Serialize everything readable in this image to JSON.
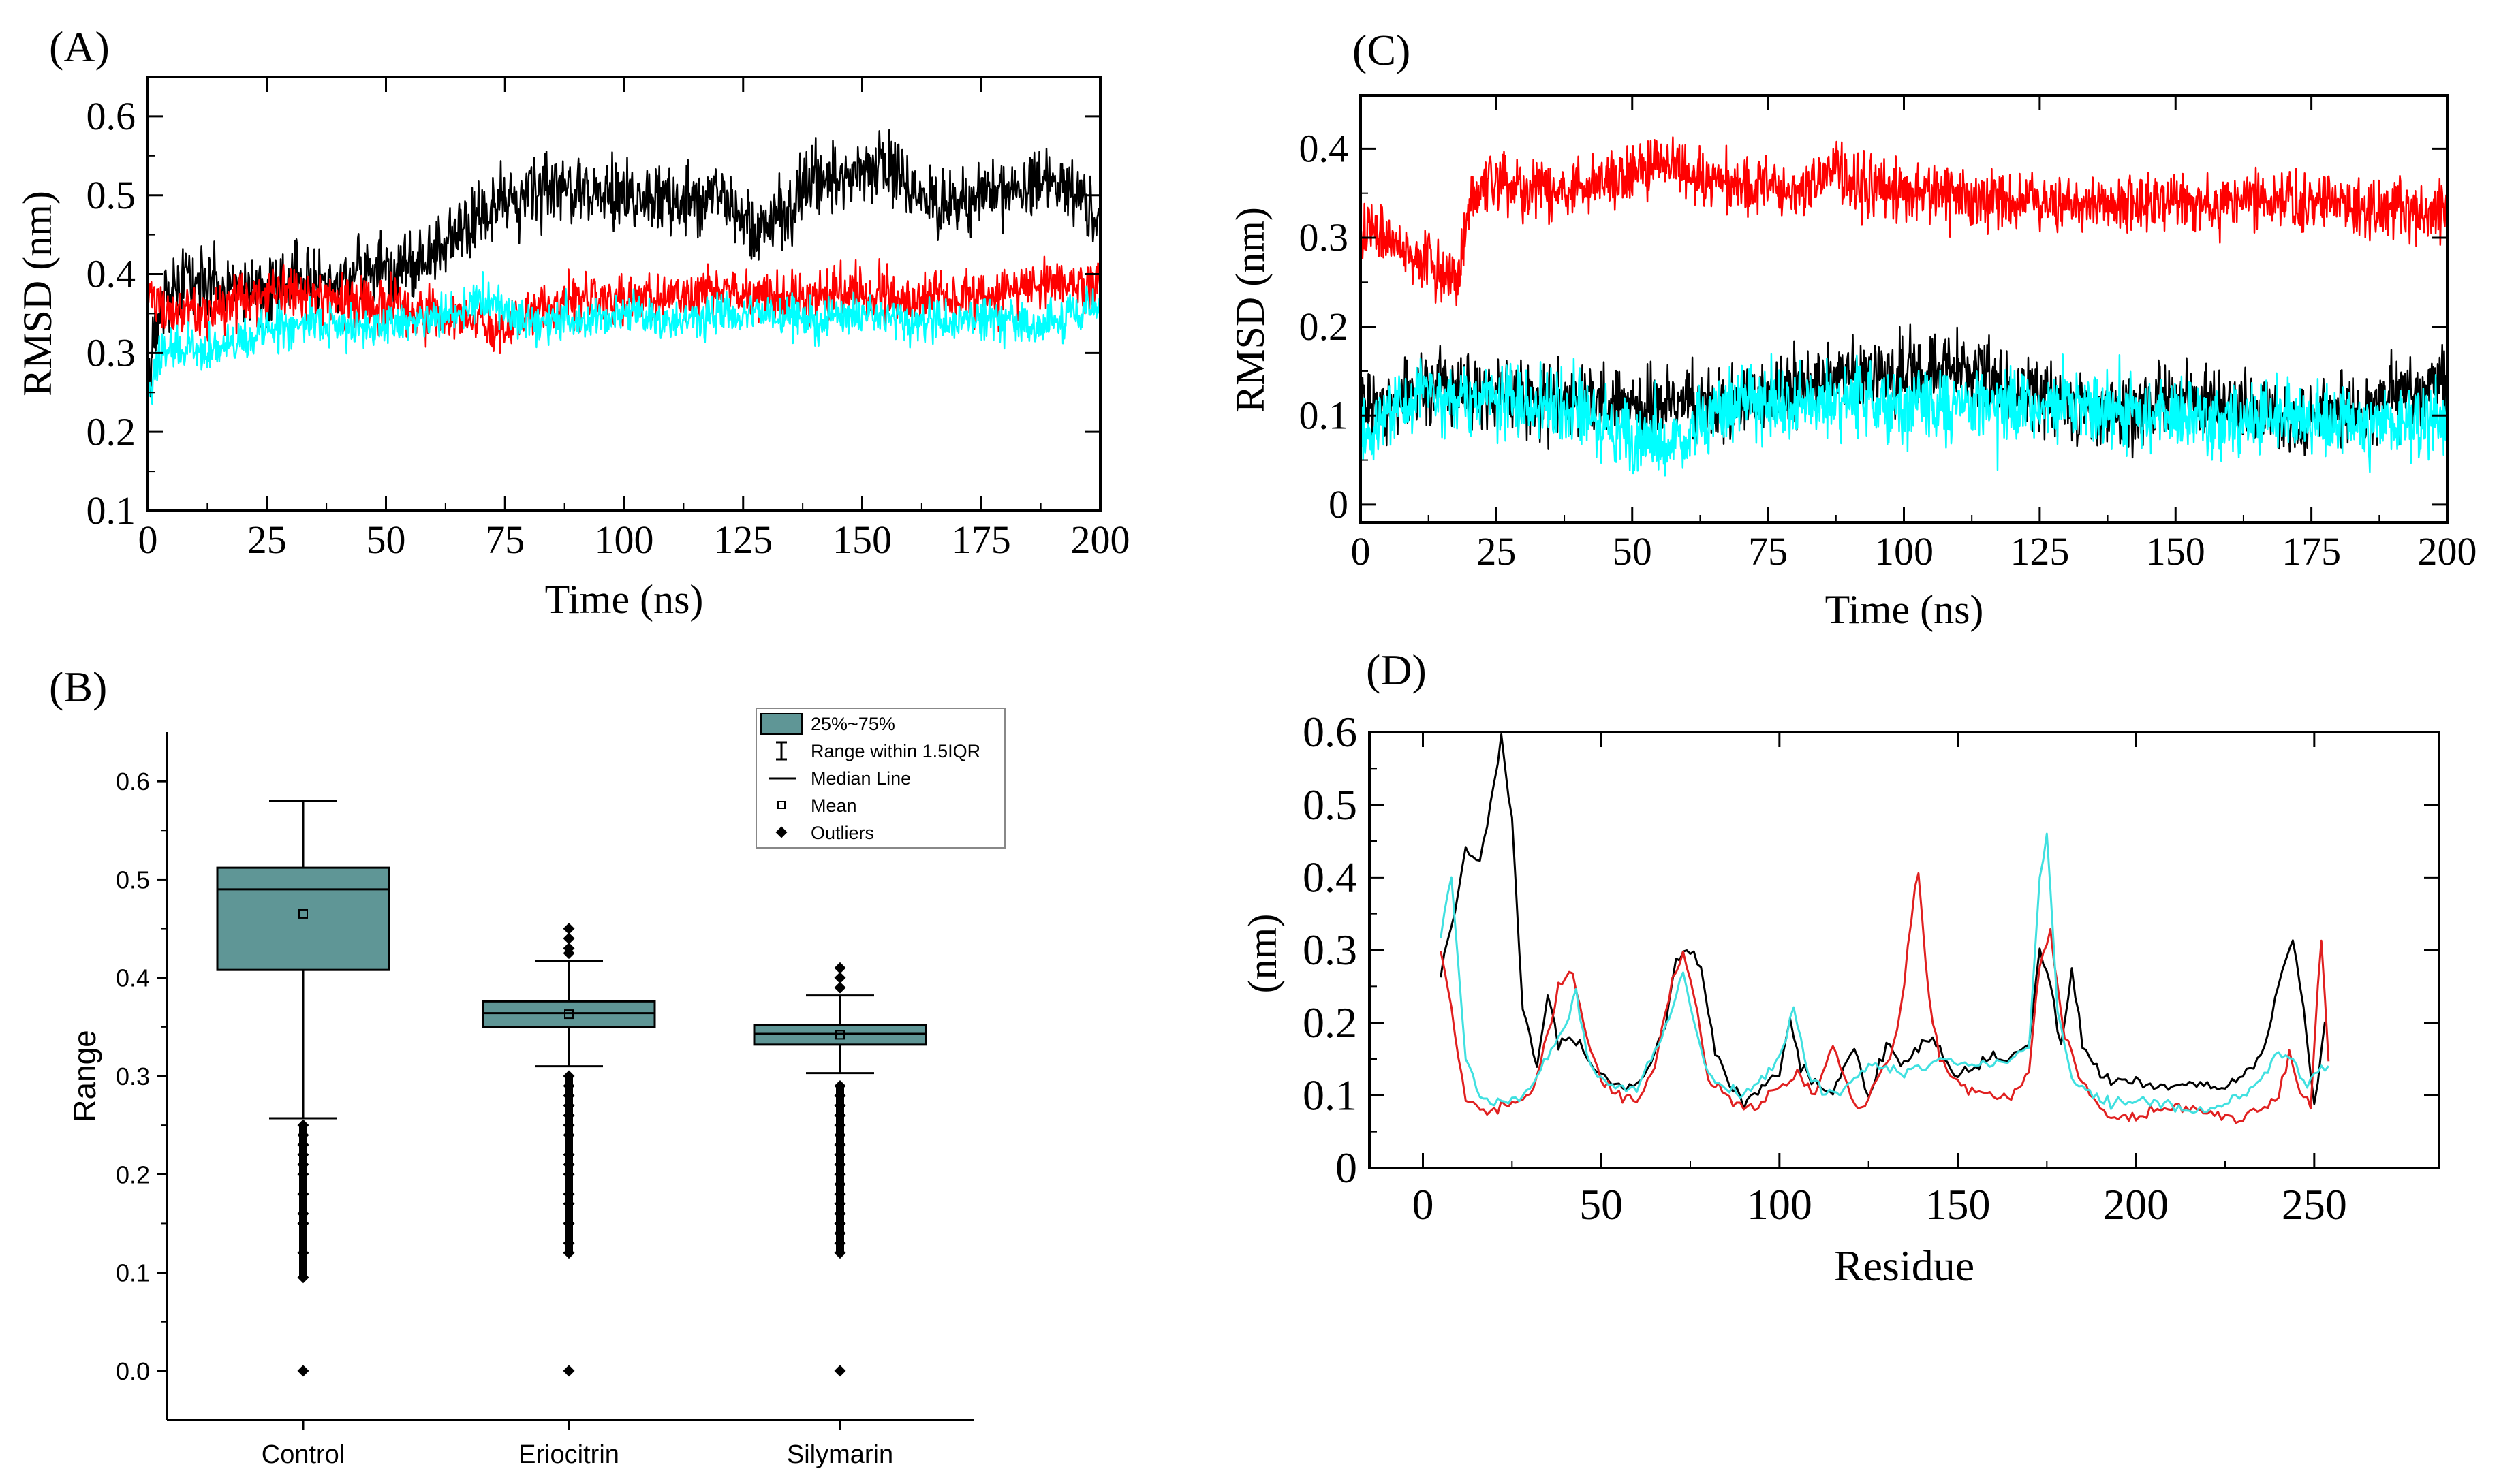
{
  "figure": {
    "panel_labels": {
      "A": "(A)",
      "B": "(B)",
      "C": "(C)",
      "D": "(D)"
    }
  },
  "chart_data": [
    {
      "id": "A",
      "type": "line",
      "title": "",
      "xlabel": "Time (ns)",
      "ylabel": "RMSD (nm)",
      "xlim": [
        0,
        200
      ],
      "ylim": [
        0.1,
        0.65
      ],
      "xticks": [
        "0",
        "25",
        "50",
        "75",
        "100",
        "125",
        "150",
        "175",
        "200"
      ],
      "yticks": [
        "0.1",
        "0.2",
        "0.3",
        "0.4",
        "0.5",
        "0.6"
      ],
      "series": [
        {
          "name": "black",
          "color": "#000000",
          "noise": 0.022,
          "x": [
            0,
            3,
            8,
            15,
            25,
            35,
            45,
            55,
            62,
            68,
            72,
            78,
            85,
            95,
            105,
            115,
            120,
            125,
            130,
            140,
            150,
            155,
            160,
            170,
            180,
            190,
            195,
            200
          ],
          "y": [
            0.26,
            0.36,
            0.4,
            0.38,
            0.38,
            0.39,
            0.4,
            0.41,
            0.43,
            0.46,
            0.48,
            0.5,
            0.51,
            0.5,
            0.5,
            0.49,
            0.51,
            0.47,
            0.46,
            0.52,
            0.53,
            0.54,
            0.5,
            0.49,
            0.51,
            0.52,
            0.5,
            0.48
          ]
        },
        {
          "name": "red",
          "color": "#ff0000",
          "noise": 0.016,
          "x": [
            0,
            3,
            10,
            20,
            30,
            40,
            50,
            60,
            70,
            75,
            80,
            90,
            100,
            110,
            120,
            130,
            140,
            150,
            160,
            170,
            180,
            190,
            200
          ],
          "y": [
            0.38,
            0.36,
            0.35,
            0.37,
            0.38,
            0.37,
            0.36,
            0.35,
            0.34,
            0.33,
            0.35,
            0.37,
            0.37,
            0.37,
            0.38,
            0.37,
            0.37,
            0.38,
            0.37,
            0.37,
            0.38,
            0.39,
            0.39
          ]
        },
        {
          "name": "cyan",
          "color": "#00ffff",
          "noise": 0.013,
          "x": [
            0,
            3,
            8,
            15,
            25,
            35,
            45,
            55,
            65,
            70,
            80,
            90,
            100,
            110,
            120,
            130,
            140,
            150,
            160,
            170,
            180,
            190,
            200
          ],
          "y": [
            0.25,
            0.3,
            0.31,
            0.3,
            0.33,
            0.34,
            0.33,
            0.34,
            0.35,
            0.37,
            0.34,
            0.34,
            0.35,
            0.34,
            0.35,
            0.35,
            0.34,
            0.35,
            0.34,
            0.34,
            0.34,
            0.34,
            0.36
          ]
        }
      ]
    },
    {
      "id": "B",
      "type": "box",
      "title": "",
      "xlabel": "",
      "ylabel": "Range",
      "ylim": [
        -0.05,
        0.65
      ],
      "yticks": [
        "0.0",
        "0.1",
        "0.2",
        "0.3",
        "0.4",
        "0.5",
        "0.6"
      ],
      "categories": [
        "Control",
        "Eriocitrin",
        "Silymarin"
      ],
      "fill": "#5f9696",
      "boxes": [
        {
          "q1": 0.408,
          "median": 0.49,
          "q3": 0.512,
          "mean": 0.465,
          "whisker_low": 0.257,
          "whisker_high": 0.58,
          "outliers_low": [
            0.0,
            0.095,
            0.12,
            0.15,
            0.16,
            0.18,
            0.2,
            0.21,
            0.22,
            0.23,
            0.24,
            0.25
          ],
          "outliers_high": []
        },
        {
          "q1": 0.35,
          "median": 0.364,
          "q3": 0.376,
          "mean": 0.363,
          "whisker_low": 0.31,
          "whisker_high": 0.417,
          "outliers_low": [
            0.0,
            0.12,
            0.13,
            0.15,
            0.17,
            0.18,
            0.2,
            0.21,
            0.22,
            0.24,
            0.25,
            0.26,
            0.27,
            0.28,
            0.29,
            0.3
          ],
          "outliers_high": [
            0.425,
            0.43,
            0.44,
            0.45
          ]
        },
        {
          "q1": 0.332,
          "median": 0.343,
          "q3": 0.352,
          "mean": 0.342,
          "whisker_low": 0.303,
          "whisker_high": 0.382,
          "outliers_low": [
            0.0,
            0.12,
            0.13,
            0.14,
            0.15,
            0.16,
            0.17,
            0.18,
            0.19,
            0.2,
            0.21,
            0.22,
            0.23,
            0.24,
            0.25,
            0.26,
            0.27,
            0.28,
            0.29
          ],
          "outliers_high": [
            0.39,
            0.4,
            0.41
          ]
        }
      ],
      "legend": {
        "box": "25%~75%",
        "range": "Range within 1.5IQR",
        "median": "Median Line",
        "mean": "Mean",
        "outliers": "Outliers"
      }
    },
    {
      "id": "C",
      "type": "line",
      "title": "",
      "xlabel": "Time (ns)",
      "ylabel": "RMSD (nm)",
      "xlim": [
        0,
        200
      ],
      "ylim": [
        -0.02,
        0.46
      ],
      "xticks": [
        "0",
        "25",
        "50",
        "75",
        "100",
        "125",
        "150",
        "175",
        "200"
      ],
      "yticks": [
        "0",
        "0.1",
        "0.2",
        "0.3",
        "0.4"
      ],
      "series": [
        {
          "name": "red",
          "color": "#ff0000",
          "noise": 0.016,
          "x": [
            0,
            5,
            10,
            15,
            18,
            20,
            25,
            30,
            40,
            50,
            55,
            58,
            60,
            70,
            80,
            87,
            88,
            90,
            100,
            110,
            120,
            130,
            140,
            150,
            160,
            170,
            180,
            190,
            200
          ],
          "y": [
            0.31,
            0.3,
            0.28,
            0.26,
            0.25,
            0.34,
            0.37,
            0.35,
            0.36,
            0.37,
            0.38,
            0.39,
            0.37,
            0.36,
            0.35,
            0.37,
            0.38,
            0.36,
            0.35,
            0.35,
            0.34,
            0.34,
            0.34,
            0.34,
            0.34,
            0.34,
            0.34,
            0.33,
            0.33
          ]
        },
        {
          "name": "black",
          "color": "#000000",
          "noise": 0.02,
          "x": [
            0,
            5,
            10,
            20,
            30,
            40,
            50,
            60,
            70,
            80,
            90,
            100,
            110,
            120,
            130,
            140,
            150,
            160,
            170,
            180,
            190,
            200
          ],
          "y": [
            0.11,
            0.1,
            0.13,
            0.13,
            0.12,
            0.12,
            0.11,
            0.12,
            0.11,
            0.13,
            0.14,
            0.15,
            0.15,
            0.13,
            0.11,
            0.11,
            0.12,
            0.11,
            0.1,
            0.1,
            0.12,
            0.14
          ]
        },
        {
          "name": "cyan",
          "color": "#00ffff",
          "noise": 0.02,
          "x": [
            0,
            5,
            10,
            20,
            30,
            40,
            48,
            52,
            60,
            65,
            70,
            80,
            90,
            100,
            110,
            120,
            130,
            140,
            150,
            160,
            170,
            180,
            190,
            200
          ],
          "y": [
            0.08,
            0.1,
            0.12,
            0.12,
            0.12,
            0.11,
            0.07,
            0.07,
            0.08,
            0.1,
            0.12,
            0.11,
            0.12,
            0.11,
            0.11,
            0.11,
            0.11,
            0.1,
            0.1,
            0.09,
            0.1,
            0.09,
            0.09,
            0.1
          ]
        }
      ]
    },
    {
      "id": "D",
      "type": "line",
      "title": "",
      "xlabel": "Residue",
      "ylabel": "(nm)",
      "xlim": [
        -15,
        285
      ],
      "ylim": [
        0,
        0.6
      ],
      "xticks": [
        "0",
        "50",
        "100",
        "150",
        "200",
        "250"
      ],
      "yticks": [
        "0",
        "0.1",
        "0.2",
        "0.3",
        "0.4",
        "0.5",
        "0.6"
      ],
      "series": [
        {
          "name": "black",
          "color": "#000000",
          "noise": 0.004,
          "x": [
            5,
            8,
            12,
            16,
            20,
            22,
            25,
            28,
            32,
            35,
            38,
            41,
            44,
            47,
            52,
            58,
            63,
            68,
            71,
            74,
            78,
            82,
            86,
            90,
            95,
            100,
            103,
            106,
            110,
            115,
            118,
            121,
            125,
            128,
            131,
            134,
            137,
            140,
            143,
            146,
            150,
            155,
            160,
            165,
            170,
            173,
            176,
            179,
            182,
            185,
            190,
            195,
            200,
            205,
            210,
            215,
            220,
            225,
            230,
            235,
            238,
            241,
            244,
            247,
            250,
            253
          ],
          "y": [
            0.27,
            0.33,
            0.44,
            0.42,
            0.53,
            0.59,
            0.48,
            0.22,
            0.14,
            0.24,
            0.17,
            0.18,
            0.17,
            0.14,
            0.12,
            0.11,
            0.13,
            0.2,
            0.28,
            0.3,
            0.28,
            0.16,
            0.12,
            0.09,
            0.11,
            0.13,
            0.2,
            0.14,
            0.12,
            0.1,
            0.14,
            0.17,
            0.09,
            0.15,
            0.17,
            0.14,
            0.15,
            0.17,
            0.18,
            0.15,
            0.13,
            0.14,
            0.15,
            0.15,
            0.17,
            0.3,
            0.25,
            0.17,
            0.27,
            0.17,
            0.13,
            0.12,
            0.12,
            0.11,
            0.11,
            0.12,
            0.11,
            0.11,
            0.13,
            0.15,
            0.21,
            0.27,
            0.32,
            0.22,
            0.08,
            0.2
          ]
        },
        {
          "name": "red",
          "color": "#e02020",
          "noise": 0.004,
          "x": [
            5,
            8,
            12,
            16,
            20,
            25,
            30,
            35,
            38,
            42,
            45,
            50,
            55,
            60,
            65,
            70,
            73,
            76,
            80,
            85,
            90,
            95,
            100,
            105,
            110,
            115,
            118,
            121,
            125,
            128,
            131,
            134,
            137,
            139,
            142,
            145,
            150,
            155,
            160,
            165,
            170,
            173,
            176,
            180,
            185,
            190,
            195,
            200,
            205,
            210,
            215,
            220,
            225,
            230,
            235,
            240,
            243,
            246,
            249,
            252,
            254
          ],
          "y": [
            0.3,
            0.22,
            0.1,
            0.08,
            0.08,
            0.09,
            0.1,
            0.18,
            0.25,
            0.27,
            0.2,
            0.12,
            0.1,
            0.09,
            0.14,
            0.26,
            0.3,
            0.24,
            0.12,
            0.1,
            0.08,
            0.09,
            0.11,
            0.13,
            0.1,
            0.17,
            0.13,
            0.08,
            0.09,
            0.13,
            0.15,
            0.21,
            0.35,
            0.41,
            0.23,
            0.15,
            0.12,
            0.1,
            0.1,
            0.1,
            0.13,
            0.28,
            0.33,
            0.18,
            0.12,
            0.08,
            0.07,
            0.07,
            0.08,
            0.08,
            0.08,
            0.08,
            0.07,
            0.07,
            0.08,
            0.1,
            0.16,
            0.1,
            0.09,
            0.32,
            0.15
          ]
        },
        {
          "name": "cyan",
          "color": "#40e0e0",
          "noise": 0.004,
          "x": [
            5,
            8,
            12,
            16,
            20,
            25,
            30,
            35,
            40,
            43,
            46,
            50,
            55,
            60,
            65,
            70,
            73,
            76,
            80,
            85,
            90,
            95,
            100,
            104,
            108,
            112,
            116,
            120,
            125,
            130,
            135,
            140,
            145,
            150,
            155,
            160,
            165,
            170,
            173,
            175,
            178,
            182,
            186,
            190,
            195,
            200,
            205,
            210,
            215,
            220,
            225,
            230,
            235,
            240,
            244,
            248,
            251,
            254
          ],
          "y": [
            0.32,
            0.4,
            0.15,
            0.1,
            0.09,
            0.09,
            0.11,
            0.15,
            0.2,
            0.24,
            0.15,
            0.12,
            0.11,
            0.11,
            0.16,
            0.22,
            0.27,
            0.2,
            0.13,
            0.11,
            0.1,
            0.12,
            0.15,
            0.22,
            0.13,
            0.11,
            0.1,
            0.12,
            0.14,
            0.14,
            0.13,
            0.14,
            0.15,
            0.15,
            0.14,
            0.14,
            0.15,
            0.17,
            0.4,
            0.46,
            0.22,
            0.12,
            0.11,
            0.09,
            0.09,
            0.09,
            0.09,
            0.09,
            0.08,
            0.08,
            0.09,
            0.1,
            0.12,
            0.16,
            0.15,
            0.11,
            0.13,
            0.14
          ]
        }
      ]
    }
  ]
}
